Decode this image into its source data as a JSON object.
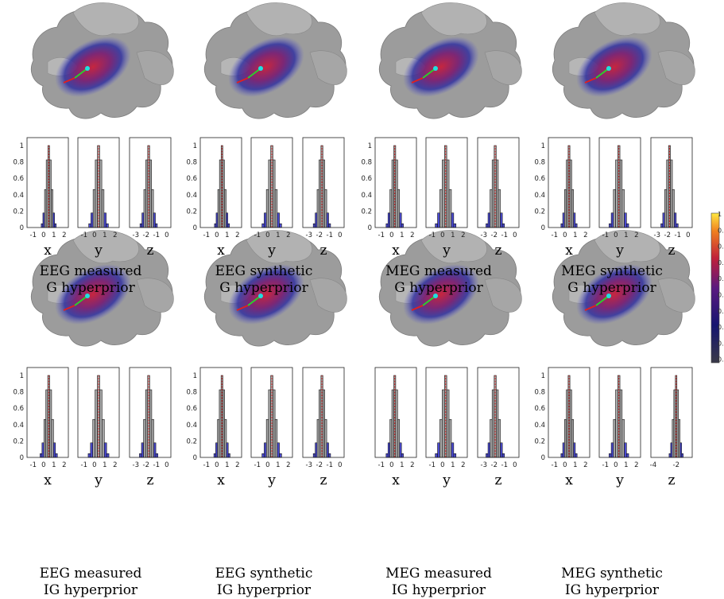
{
  "colors": {
    "hist_fill": "#a9a9a9",
    "tail_fill": "#4a4ad0",
    "median_line": "#d62020",
    "frame": "#222222"
  },
  "chart_data": [
    {
      "type": "bar",
      "panel": "EEG measured G hyperprior",
      "caption": [
        "EEG measured",
        "G hyperprior"
      ],
      "coords": [
        {
          "xlabel": "x",
          "mode": 0.5,
          "sd": 0.26,
          "xticks": [
            "-1",
            "0",
            "1",
            "2"
          ],
          "xlim": [
            -1.6,
            2.4
          ]
        },
        {
          "xlabel": "y",
          "mode": 0.4,
          "sd": 0.34,
          "xticks": [
            "-1",
            "0",
            "1",
            "2"
          ],
          "xlim": [
            -1.6,
            2.4
          ]
        },
        {
          "xlabel": "z",
          "mode": -1.75,
          "sd": 0.3,
          "xticks": [
            "-3",
            "-2",
            "-1",
            "0"
          ],
          "xlim": [
            -3.6,
            0.4
          ]
        }
      ],
      "yticks": [
        "0",
        "0.2",
        "0.4",
        "0.6",
        "0.8",
        "1"
      ]
    },
    {
      "type": "bar",
      "panel": "EEG synthetic G hyperprior",
      "caption": [
        "EEG synthetic",
        "G hyperprior"
      ],
      "coords": [
        {
          "xlabel": "x",
          "mode": 0.5,
          "sd": 0.26,
          "xticks": [
            "-1",
            "0",
            "1",
            "2"
          ],
          "xlim": [
            -1.6,
            2.4
          ]
        },
        {
          "xlabel": "y",
          "mode": 0.4,
          "sd": 0.34,
          "xticks": [
            "-1",
            "0",
            "1",
            "2"
          ],
          "xlim": [
            -1.6,
            2.4
          ]
        },
        {
          "xlabel": "z",
          "mode": -1.75,
          "sd": 0.3,
          "xticks": [
            "-3",
            "-2",
            "-1",
            "0"
          ],
          "xlim": [
            -3.6,
            0.4
          ]
        }
      ],
      "yticks": [
        "0",
        "0.2",
        "0.4",
        "0.6",
        "0.8",
        "1"
      ]
    },
    {
      "type": "bar",
      "panel": "MEG measured G hyperprior",
      "caption": [
        "MEG measured",
        "G hyperprior"
      ],
      "coords": [
        {
          "xlabel": "x",
          "mode": 0.3,
          "sd": 0.3,
          "xticks": [
            "-1",
            "0",
            "1",
            "2"
          ],
          "xlim": [
            -1.6,
            2.4
          ]
        },
        {
          "xlabel": "y",
          "mode": 0.3,
          "sd": 0.36,
          "xticks": [
            "-1",
            "0",
            "1",
            "2"
          ],
          "xlim": [
            -1.6,
            2.4
          ]
        },
        {
          "xlabel": "z",
          "mode": -1.9,
          "sd": 0.32,
          "xticks": [
            "-3",
            "-2",
            "-1",
            "0"
          ],
          "xlim": [
            -3.6,
            0.4
          ]
        }
      ],
      "yticks": [
        "0",
        "0.2",
        "0.4",
        "0.6",
        "0.8",
        "1"
      ]
    },
    {
      "type": "bar",
      "panel": "MEG synthetic G hyperprior",
      "caption": [
        "MEG synthetic",
        "G hyperprior"
      ],
      "coords": [
        {
          "xlabel": "x",
          "mode": 0.4,
          "sd": 0.28,
          "xticks": [
            "-1",
            "0",
            "1",
            "2"
          ],
          "xlim": [
            -1.6,
            2.4
          ]
        },
        {
          "xlabel": "y",
          "mode": 0.3,
          "sd": 0.34,
          "xticks": [
            "-1",
            "0",
            "1",
            "2"
          ],
          "xlim": [
            -1.6,
            2.4
          ]
        },
        {
          "xlabel": "z",
          "mode": -1.8,
          "sd": 0.3,
          "xticks": [
            "-3",
            "-2",
            "-1",
            "0"
          ],
          "xlim": [
            -3.6,
            0.4
          ]
        }
      ],
      "yticks": [
        "0",
        "0.2",
        "0.4",
        "0.6",
        "0.8",
        "1"
      ]
    },
    {
      "type": "bar",
      "panel": "EEG measured IG hyperprior",
      "caption": [
        "EEG measured",
        "IG hyperprior"
      ],
      "coords": [
        {
          "xlabel": "x",
          "mode": 0.5,
          "sd": 0.3,
          "xticks": [
            "-1",
            "0",
            "1",
            "2"
          ],
          "xlim": [
            -1.6,
            2.4
          ]
        },
        {
          "xlabel": "y",
          "mode": 0.4,
          "sd": 0.36,
          "xticks": [
            "-1",
            "0",
            "1",
            "2"
          ],
          "xlim": [
            -1.6,
            2.4
          ]
        },
        {
          "xlabel": "z",
          "mode": -1.75,
          "sd": 0.32,
          "xticks": [
            "-3",
            "-2",
            "-1",
            "0"
          ],
          "xlim": [
            -3.6,
            0.4
          ]
        }
      ],
      "yticks": [
        "0",
        "0.2",
        "0.4",
        "0.6",
        "0.8",
        "1"
      ]
    },
    {
      "type": "bar",
      "panel": "EEG synthetic IG hyperprior",
      "caption": [
        "EEG synthetic",
        "IG hyperprior"
      ],
      "coords": [
        {
          "xlabel": "x",
          "mode": 0.5,
          "sd": 0.28,
          "xticks": [
            "-1",
            "0",
            "1",
            "2"
          ],
          "xlim": [
            -1.6,
            2.4
          ]
        },
        {
          "xlabel": "y",
          "mode": 0.4,
          "sd": 0.34,
          "xticks": [
            "-1",
            "0",
            "1",
            "2"
          ],
          "xlim": [
            -1.6,
            2.4
          ]
        },
        {
          "xlabel": "z",
          "mode": -1.75,
          "sd": 0.3,
          "xticks": [
            "-3",
            "-2",
            "-1",
            "0"
          ],
          "xlim": [
            -3.6,
            0.4
          ]
        }
      ],
      "yticks": [
        "0",
        "0.2",
        "0.4",
        "0.6",
        "0.8",
        "1"
      ]
    },
    {
      "type": "bar",
      "panel": "MEG measured IG hyperprior",
      "caption": [
        "MEG measured",
        "IG hyperprior"
      ],
      "coords": [
        {
          "xlabel": "x",
          "mode": 0.3,
          "sd": 0.3,
          "xticks": [
            "-1",
            "0",
            "1",
            "2"
          ],
          "xlim": [
            -1.6,
            2.4
          ]
        },
        {
          "xlabel": "y",
          "mode": 0.3,
          "sd": 0.36,
          "xticks": [
            "-1",
            "0",
            "1",
            "2"
          ],
          "xlim": [
            -1.6,
            2.4
          ]
        },
        {
          "xlabel": "z",
          "mode": -1.9,
          "sd": 0.32,
          "xticks": [
            "-3",
            "-2",
            "-1",
            "0"
          ],
          "xlim": [
            -3.6,
            0.4
          ]
        }
      ],
      "yticks": [
        "",
        "",
        "",
        "",
        "",
        ""
      ]
    },
    {
      "type": "bar",
      "panel": "MEG synthetic IG hyperprior",
      "caption": [
        "MEG synthetic",
        "IG hyperprior"
      ],
      "coords": [
        {
          "xlabel": "x",
          "mode": 0.4,
          "sd": 0.28,
          "xticks": [
            "-1",
            "0",
            "1",
            "2"
          ],
          "xlim": [
            -1.6,
            2.4
          ]
        },
        {
          "xlabel": "y",
          "mode": 0.3,
          "sd": 0.34,
          "xticks": [
            "-1",
            "0",
            "1",
            "2"
          ],
          "xlim": [
            -1.6,
            2.4
          ]
        },
        {
          "xlabel": "z",
          "mode": -2.0,
          "sd": 0.22,
          "xticks": [
            "-4",
            "-2"
          ],
          "xlim": [
            -4.2,
            -0.6
          ]
        }
      ],
      "yticks": [
        "0",
        "0.2",
        "0.4",
        "0.6",
        "0.8",
        "1"
      ]
    }
  ],
  "colorbar": {
    "labels": [
      "1",
      "0.",
      "0.",
      "0.",
      "0.",
      "0.",
      "0.",
      "0.",
      "0.",
      "0."
    ]
  }
}
